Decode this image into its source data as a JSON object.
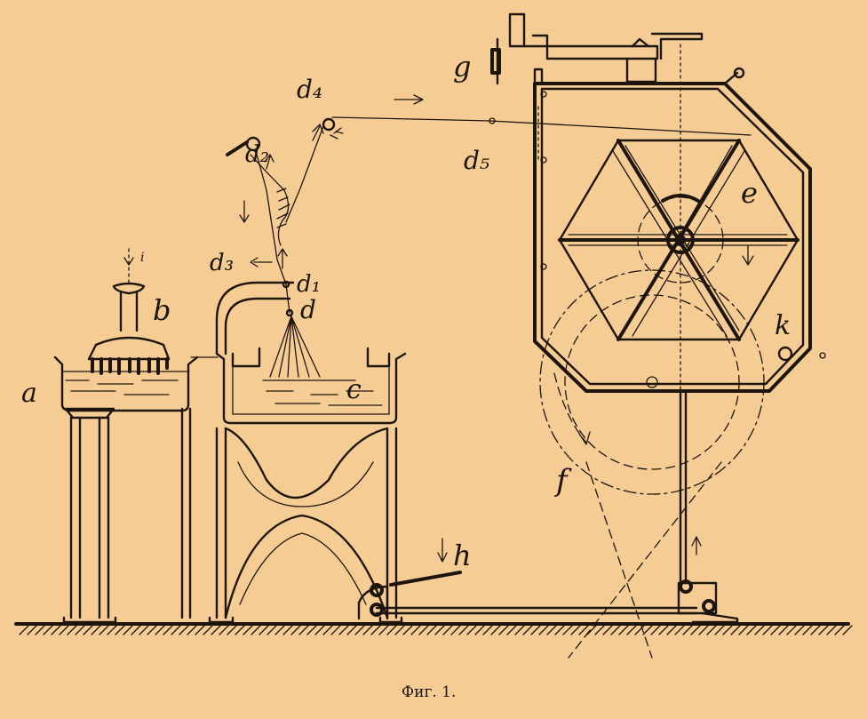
{
  "figure": {
    "caption": "Фиг. 1.",
    "background_color": "#f6cc95",
    "ink_color": "#1e150f"
  },
  "labels": {
    "a": "a",
    "b": "b",
    "c": "c",
    "d": "d",
    "d1": "d₁",
    "d2": "d₂",
    "d3": "d₃",
    "d4": "d₄",
    "d5": "d₅",
    "e": "e",
    "f": "f",
    "g": "g",
    "h": "h",
    "k": "k",
    "i": "i"
  }
}
